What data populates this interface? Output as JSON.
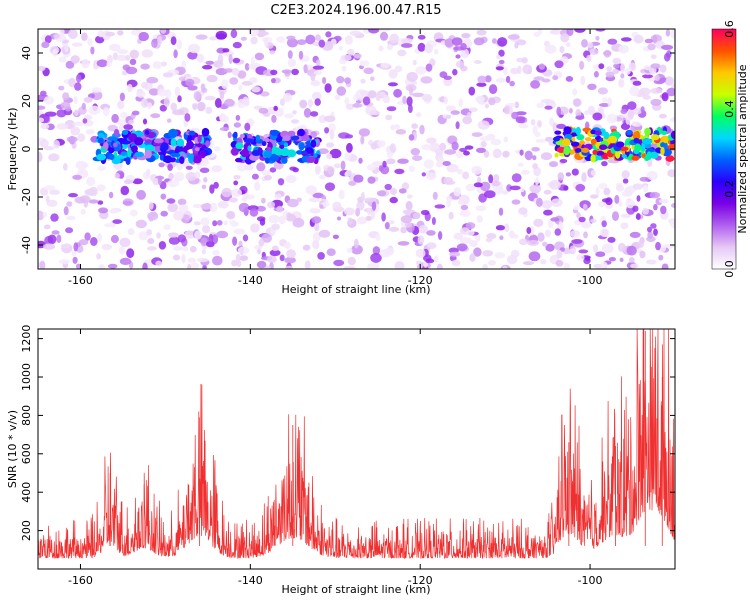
{
  "title": "C2E3.2024.196.00.47.R15",
  "chart_data": [
    {
      "type": "heatmap",
      "xlabel": "Height of straight line (km)",
      "ylabel": "Frequency (Hz)",
      "xlim": [
        -165,
        -90
      ],
      "ylim": [
        -50,
        50
      ],
      "x_ticks": [
        -160,
        -140,
        -120,
        -100
      ],
      "y_ticks": [
        -40,
        -20,
        0,
        20,
        40
      ],
      "colorbar": {
        "label": "Normalized spectral amplitude",
        "range": [
          0.0,
          0.6
        ],
        "ticks": [
          "0.0",
          "0.2",
          "0.4",
          "0.6"
        ],
        "colors": [
          "#ffffff",
          "#e6c8f5",
          "#b060f0",
          "#7a00e6",
          "#2a00ff",
          "#0060ff",
          "#00d8ff",
          "#00ff60",
          "#c8ff00",
          "#ffc800",
          "#ff5000",
          "#ff0060"
        ]
      },
      "bands": [
        {
          "x": [
            -158,
            -145
          ],
          "y": 1,
          "peak": 0.35
        },
        {
          "x": [
            -142,
            -132
          ],
          "y": 1,
          "peak": 0.35
        },
        {
          "x": [
            -104,
            -90
          ],
          "y": 2,
          "peak": 0.6
        }
      ],
      "background_level": 0.1
    },
    {
      "type": "line",
      "xlabel": "Height of straight line (km)",
      "ylabel": "SNR (10 * v/v)",
      "xlim": [
        -165,
        -90
      ],
      "ylim": [
        0,
        1250
      ],
      "x_ticks": [
        -160,
        -140,
        -120,
        -100
      ],
      "y_ticks": [
        200,
        400,
        600,
        800,
        1000,
        1200
      ],
      "color": "#f03030",
      "baseline": 120,
      "bursts": [
        {
          "x": -156.5,
          "peak": 500,
          "width": 1.2
        },
        {
          "x": -152.5,
          "peak": 440,
          "width": 1.5
        },
        {
          "x": -146,
          "peak": 790,
          "width": 2.0
        },
        {
          "x": -135,
          "peak": 750,
          "width": 2.5
        },
        {
          "x": -102.5,
          "peak": 660,
          "width": 1.5
        },
        {
          "x": -97,
          "peak": 640,
          "width": 2.0
        },
        {
          "x": -93.5,
          "peak": 1240,
          "width": 1.5
        },
        {
          "x": -91.5,
          "peak": 1000,
          "width": 1.5
        }
      ]
    }
  ]
}
